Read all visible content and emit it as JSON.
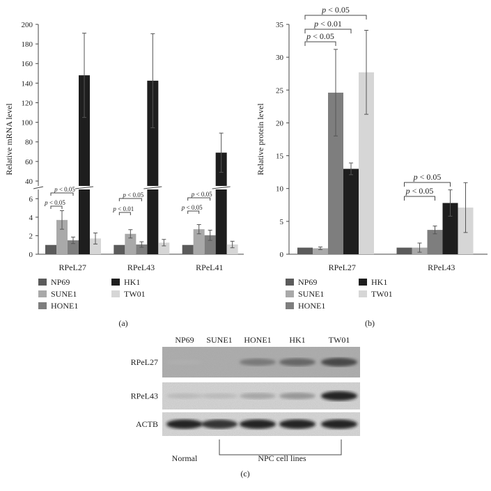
{
  "chart_data": [
    {
      "panel": "(a)",
      "type": "bar",
      "ylabel": "Relative mRNA level",
      "ylim_lower": [
        0,
        7
      ],
      "ylim_upper": [
        35,
        200
      ],
      "yticks_lower": [
        0,
        2,
        4,
        6
      ],
      "yticks_upper": [
        40,
        60,
        80,
        100,
        120,
        140,
        160,
        180,
        200
      ],
      "categories": [
        "RPeL27",
        "RPeL43",
        "RPeL41"
      ],
      "series": [
        {
          "name": "NP69",
          "color": "#5b5b5b",
          "values": [
            1.0,
            1.0,
            1.0
          ],
          "errors": [
            0,
            0,
            0
          ]
        },
        {
          "name": "SUNE1",
          "color": "#a9a9a9",
          "values": [
            3.7,
            2.2,
            2.7
          ],
          "errors": [
            1.0,
            0.45,
            0.5
          ]
        },
        {
          "name": "HONE1",
          "color": "#7e7e7e",
          "values": [
            1.5,
            1.05,
            2.05
          ],
          "errors": [
            0.35,
            0.3,
            0.55
          ]
        },
        {
          "name": "HK1",
          "color": "#1e1e1e",
          "values": [
            148.0,
            142.5,
            69.0
          ],
          "errors": [
            43.0,
            48.0,
            20.0
          ]
        },
        {
          "name": "TW01",
          "color": "#d6d6d6",
          "values": [
            1.7,
            1.25,
            1.05
          ],
          "errors": [
            0.6,
            0.35,
            0.35
          ]
        }
      ],
      "annotations": [
        {
          "category": 0,
          "from": 0,
          "to": 1,
          "text": "p < 0.05"
        },
        {
          "category": 0,
          "from": 0,
          "to": 2,
          "text": "p < 0.05"
        },
        {
          "category": 1,
          "from": 0,
          "to": 1,
          "text": "p < 0.01"
        },
        {
          "category": 1,
          "from": 0,
          "to": 2,
          "text": "p < 0.05"
        },
        {
          "category": 2,
          "from": 0,
          "to": 1,
          "text": "p < 0.05"
        },
        {
          "category": 2,
          "from": 0,
          "to": 2,
          "text": "p < 0.05"
        }
      ],
      "legend": [
        "NP69",
        "SUNE1",
        "HONE1",
        "HK1",
        "TW01"
      ],
      "legend_placement": "bottom"
    },
    {
      "panel": "(b)",
      "type": "bar",
      "ylabel": "Relative protein level",
      "ylim": [
        0,
        35
      ],
      "yticks": [
        0,
        5,
        10,
        15,
        20,
        25,
        30,
        35
      ],
      "categories": [
        "RPeL27",
        "RPeL43"
      ],
      "series": [
        {
          "name": "NP69",
          "color": "#5b5b5b",
          "values": [
            1.0,
            1.0
          ],
          "errors": [
            0,
            0
          ]
        },
        {
          "name": "SUNE1",
          "color": "#a9a9a9",
          "values": [
            0.9,
            1.0
          ],
          "errors": [
            0.2,
            0.7
          ]
        },
        {
          "name": "HONE1",
          "color": "#7e7e7e",
          "values": [
            24.6,
            3.7
          ],
          "errors": [
            6.6,
            0.6
          ]
        },
        {
          "name": "HK1",
          "color": "#1e1e1e",
          "values": [
            13.0,
            7.8
          ],
          "errors": [
            0.9,
            2.0
          ]
        },
        {
          "name": "TW01",
          "color": "#d6d6d6",
          "values": [
            27.7,
            7.1
          ],
          "errors": [
            6.4,
            3.8
          ]
        }
      ],
      "annotations": [
        {
          "category": 0,
          "from": 0,
          "to": 2,
          "text": "p < 0.05"
        },
        {
          "category": 0,
          "from": 0,
          "to": 3,
          "text": "p < 0.01"
        },
        {
          "category": 0,
          "from": 0,
          "to": 4,
          "text": "p < 0.05"
        },
        {
          "category": 1,
          "from": 0,
          "to": 2,
          "text": "p < 0.05"
        },
        {
          "category": 1,
          "from": 0,
          "to": 3,
          "text": "p < 0.05"
        }
      ],
      "legend": [
        "NP69",
        "SUNE1",
        "HONE1",
        "HK1",
        "TW01"
      ],
      "legend_placement": "bottom"
    }
  ],
  "panel_labels": {
    "a": "(a)",
    "b": "(b)",
    "c": "(c)"
  },
  "blot": {
    "lanes": [
      "NP69",
      "SUNE1",
      "HONE1",
      "HK1",
      "TW01"
    ],
    "rows": [
      {
        "label": "RPeL27",
        "intensity": [
          0.1,
          0.15,
          0.55,
          0.65,
          0.8
        ]
      },
      {
        "label": "RPeL43",
        "intensity": [
          0.2,
          0.2,
          0.35,
          0.45,
          0.95
        ]
      },
      {
        "label": "ACTB",
        "intensity": [
          0.95,
          0.9,
          0.95,
          0.95,
          0.95
        ]
      }
    ],
    "normal_label": "Normal",
    "npc_label": "NPC cell lines"
  }
}
